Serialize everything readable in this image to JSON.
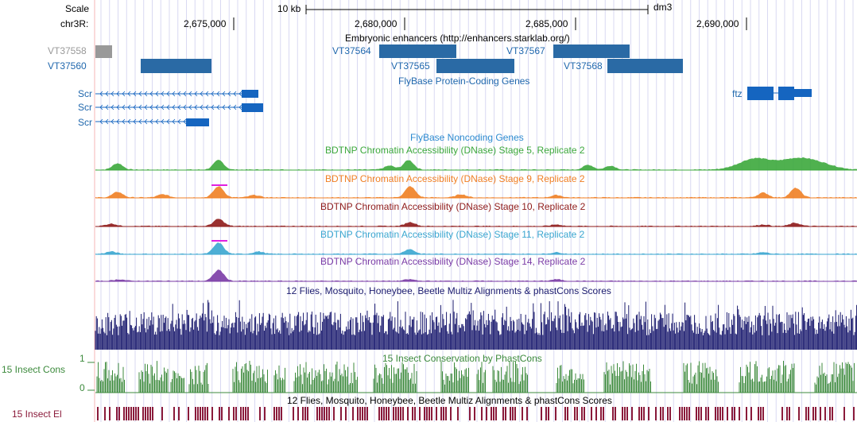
{
  "ruler": {
    "scale_label": "Scale",
    "chrom_label": "chr3R:",
    "scale_bar_text": "10 kb",
    "assembly": "dm3",
    "positions": [
      "2,675,000",
      "2,680,000",
      "2,685,000",
      "2,690,000"
    ]
  },
  "enhancers": {
    "title": "Embryonic enhancers (http://enhancers.starklab.org/)",
    "items": [
      {
        "name": "VT37558",
        "color": "#999999",
        "label_color": "#999999"
      },
      {
        "name": "VT37560",
        "color": "#2a6aa5",
        "label_color": "#1f67ad"
      },
      {
        "name": "VT37564",
        "color": "#2a6aa5",
        "label_color": "#1f67ad"
      },
      {
        "name": "VT37565",
        "color": "#2a6aa5",
        "label_color": "#1f67ad"
      },
      {
        "name": "VT37567",
        "color": "#2a6aa5",
        "label_color": "#1f67ad"
      },
      {
        "name": "VT37568",
        "color": "#2a6aa5",
        "label_color": "#1f67ad"
      }
    ]
  },
  "protein_genes": {
    "title": "FlyBase Protein-Coding Genes",
    "genes": [
      "Scr",
      "Scr",
      "Scr",
      "ftz"
    ],
    "color": "#1565c0"
  },
  "noncoding": {
    "title": "FlyBase Noncoding Genes"
  },
  "dnase_tracks": [
    {
      "title": "BDTNP Chromatin Accessibility (DNase) Stage 5, Replicate 2",
      "color": "#3ca83c"
    },
    {
      "title": "BDTNP Chromatin Accessibility (DNase) Stage 9, Replicate 2",
      "color": "#f07f24"
    },
    {
      "title": "BDTNP Chromatin Accessibility (DNase) Stage 10, Replicate 2",
      "color": "#8e1a1a"
    },
    {
      "title": "BDTNP Chromatin Accessibility (DNase) Stage 11, Replicate 2",
      "color": "#3aa6d0"
    },
    {
      "title": "BDTNP Chromatin Accessibility (DNase) Stage 14, Replicate 2",
      "color": "#7a3ba6"
    }
  ],
  "multiz": {
    "title": "12 Flies, Mosquito, Honeybee, Beetle Multiz Alignments & phastCons Scores",
    "color": "#1a1a6e"
  },
  "phastcons": {
    "title": "15 Insect Conservation by PhastCons",
    "side_label": "15 Insect Cons",
    "max": "1",
    "min": "0",
    "color": "#3c8a3c"
  },
  "elements": {
    "title": "12 Flies, Mosquito, Honeybee, Beetle Multiz Alignments & phastCons Scores",
    "side_label": "15 Insect El",
    "color": "#8a1a3a"
  }
}
